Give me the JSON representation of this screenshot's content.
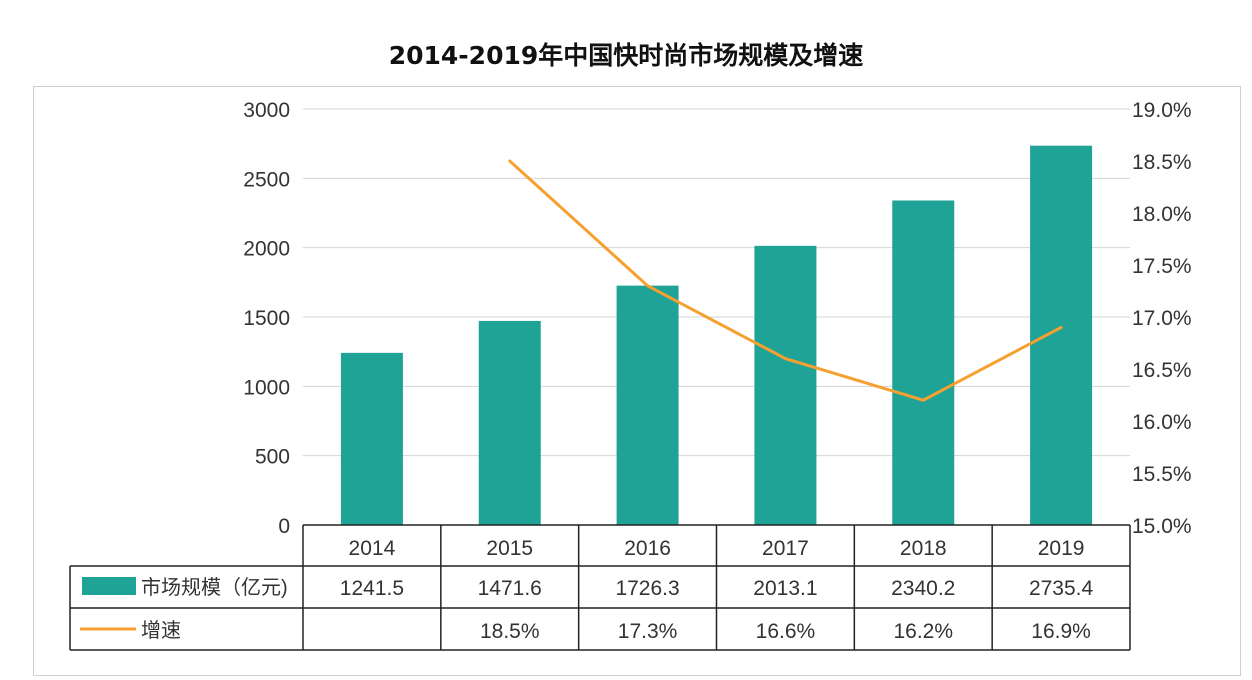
{
  "chart_data": {
    "type": "bar+line",
    "title": "2014-2019年中国快时尚市场规模及增速",
    "categories": [
      "2014",
      "2015",
      "2016",
      "2017",
      "2018",
      "2019"
    ],
    "series": [
      {
        "name": "市场规模（亿元)",
        "type": "bar",
        "axis": "left",
        "color": "#1fa397",
        "values": [
          1241.5,
          1471.6,
          1726.3,
          2013.1,
          2340.2,
          2735.4
        ],
        "labels": [
          "1241.5",
          "1471.6",
          "1726.3",
          "2013.1",
          "2340.2",
          "2735.4"
        ]
      },
      {
        "name": "增速",
        "type": "line",
        "axis": "right",
        "color": "#f5a030",
        "values": [
          null,
          18.5,
          17.3,
          16.6,
          16.2,
          16.9
        ],
        "labels": [
          "",
          "18.5%",
          "17.3%",
          "16.6%",
          "16.2%",
          "16.9%"
        ]
      }
    ],
    "left_axis": {
      "ylim": [
        0,
        3000
      ],
      "ticks": [
        "0",
        "500",
        "1000",
        "1500",
        "2000",
        "2500",
        "3000"
      ]
    },
    "right_axis": {
      "ylim": [
        15.0,
        19.0
      ],
      "ticks": [
        "15.0%",
        "15.5%",
        "16.0%",
        "16.5%",
        "17.0%",
        "17.5%",
        "18.0%",
        "18.5%",
        "19.0%"
      ]
    },
    "grid": true,
    "legend": "data-table"
  }
}
